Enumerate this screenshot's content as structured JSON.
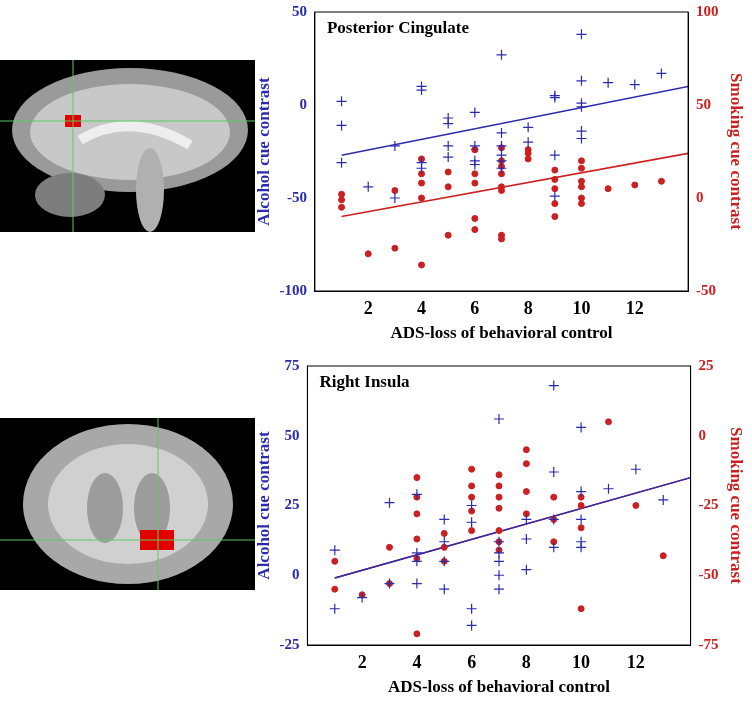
{
  "chart_data": [
    {
      "type": "scatter",
      "title": "Posterior Cingulate",
      "x_label": "ADS-loss of behavioral control",
      "y_label": "Alcohol cue contrast",
      "y2_label": "Smoking cue contrast",
      "xlim": [
        0,
        14
      ],
      "xticks": [
        2,
        4,
        6,
        8,
        10,
        12
      ],
      "ylim": [
        -100,
        50
      ],
      "yticks": [
        -100,
        -50,
        0,
        50
      ],
      "y2lim": [
        -50,
        100
      ],
      "y2ticks": [
        -50,
        0,
        50,
        100
      ],
      "grid": false,
      "series": [
        {
          "name": "Alcohol cue contrast",
          "color": "#2b2bb0",
          "marker": "cross",
          "x": [
            1,
            1,
            1,
            2,
            3,
            3,
            4,
            4,
            4,
            4,
            5,
            5,
            5,
            5,
            6,
            6,
            6,
            6,
            7,
            7,
            7,
            7,
            7,
            7,
            8,
            8,
            9,
            9,
            9,
            9,
            10,
            10,
            10,
            10,
            10,
            10,
            11,
            12,
            13
          ],
          "values": [
            2,
            -11,
            -31,
            -44,
            -22,
            -50,
            10,
            8,
            -31,
            -34,
            -7,
            -10,
            -22,
            -28,
            -4,
            -22,
            -30,
            -32,
            27,
            -15,
            -22,
            -27,
            -30,
            -34,
            -12,
            -20,
            5,
            4,
            -27,
            -49,
            38,
            13,
            1,
            -1,
            -14,
            -18,
            12,
            11,
            17
          ]
        },
        {
          "name": "Smoking cue contrast",
          "color": "#cc1f1f",
          "marker": "circle",
          "axis": "y2",
          "x": [
            1,
            1,
            1,
            2,
            3,
            3,
            4,
            4,
            4,
            4,
            4,
            5,
            5,
            5,
            6,
            6,
            6,
            6,
            6,
            6,
            7,
            7,
            7,
            7,
            7,
            7,
            7,
            7,
            8,
            8,
            8,
            9,
            9,
            9,
            9,
            9,
            10,
            10,
            10,
            10,
            10,
            10,
            11,
            12,
            13
          ],
          "values": [
            2,
            -1,
            -5,
            -30,
            4,
            -27,
            21,
            13,
            8,
            0,
            -36,
            14,
            6,
            -20,
            26,
            26,
            13,
            8,
            -11,
            -17,
            27,
            20,
            17,
            13,
            6,
            4,
            -20,
            -22,
            26,
            24,
            21,
            15,
            10,
            5,
            -3,
            -10,
            20,
            16,
            9,
            6,
            0,
            -3,
            5,
            7,
            9
          ]
        },
        {
          "type": "line",
          "color": "#2b2bb0",
          "x": [
            1,
            14
          ],
          "values": [
            -27,
            10
          ]
        },
        {
          "type": "line",
          "color": "#cc1f1f",
          "axis": "y2",
          "x": [
            1,
            14
          ],
          "values": [
            -10,
            24
          ]
        }
      ]
    },
    {
      "type": "scatter",
      "title": "Right Insula",
      "x_label": "ADS-loss of behavioral control",
      "y_label": "Alcohol cue contrast",
      "y2_label": "Smoking cue contrast",
      "xlim": [
        0,
        14
      ],
      "xticks": [
        2,
        4,
        6,
        8,
        10,
        12
      ],
      "ylim": [
        -25,
        75
      ],
      "yticks": [
        -25,
        0,
        25,
        50,
        75
      ],
      "y2lim": [
        -75,
        25
      ],
      "y2ticks": [
        -75,
        -50,
        -25,
        0,
        25
      ],
      "grid": false,
      "series": [
        {
          "name": "Alcohol cue contrast",
          "color": "#2b2bb0",
          "marker": "cross",
          "x": [
            1,
            1,
            2,
            3,
            3,
            4,
            4,
            4,
            4,
            5,
            5,
            5,
            5,
            6,
            6,
            6,
            6,
            7,
            7,
            7,
            7,
            7,
            7,
            8,
            8,
            8,
            9,
            9,
            9,
            9,
            10,
            10,
            10,
            10,
            10,
            11,
            12,
            13
          ],
          "values": [
            9,
            -12,
            -8,
            26,
            -3,
            29,
            8,
            5,
            -3,
            20,
            12,
            5,
            -5,
            25,
            19,
            -12,
            -18,
            56,
            12,
            8,
            5,
            0,
            -5,
            20,
            13,
            2,
            68,
            37,
            20,
            10,
            53,
            30,
            20,
            12,
            10,
            31,
            38,
            27
          ]
        },
        {
          "name": "Smoking cue contrast",
          "color": "#cc1f1f",
          "marker": "circle",
          "axis": "y2",
          "x": [
            1,
            1,
            2,
            3,
            3,
            4,
            4,
            4,
            4,
            4,
            4,
            5,
            5,
            5,
            6,
            6,
            6,
            6,
            6,
            7,
            7,
            7,
            7,
            7,
            7,
            7,
            8,
            8,
            8,
            8,
            9,
            9,
            9,
            10,
            10,
            10,
            10,
            11,
            12,
            13
          ],
          "values": [
            -45,
            -55,
            -57,
            -40,
            -53,
            -15,
            -22,
            -28,
            -37,
            -44,
            -71,
            -35,
            -40,
            -45,
            -12,
            -18,
            -22,
            -27,
            -34,
            -14,
            -18,
            -22,
            -26,
            -34,
            -38,
            -41,
            -5,
            -10,
            -20,
            -28,
            -22,
            -30,
            -38,
            -22,
            -25,
            -33,
            -62,
            5,
            -25,
            -43
          ]
        },
        {
          "type": "line",
          "color": "#2b2bb0",
          "x": [
            1,
            14
          ],
          "values": [
            -1,
            35
          ]
        },
        {
          "type": "line",
          "color": "#cc1f1f",
          "axis": "y2",
          "x": [
            1,
            14
          ],
          "values": [
            -51,
            -15
          ]
        }
      ]
    }
  ]
}
